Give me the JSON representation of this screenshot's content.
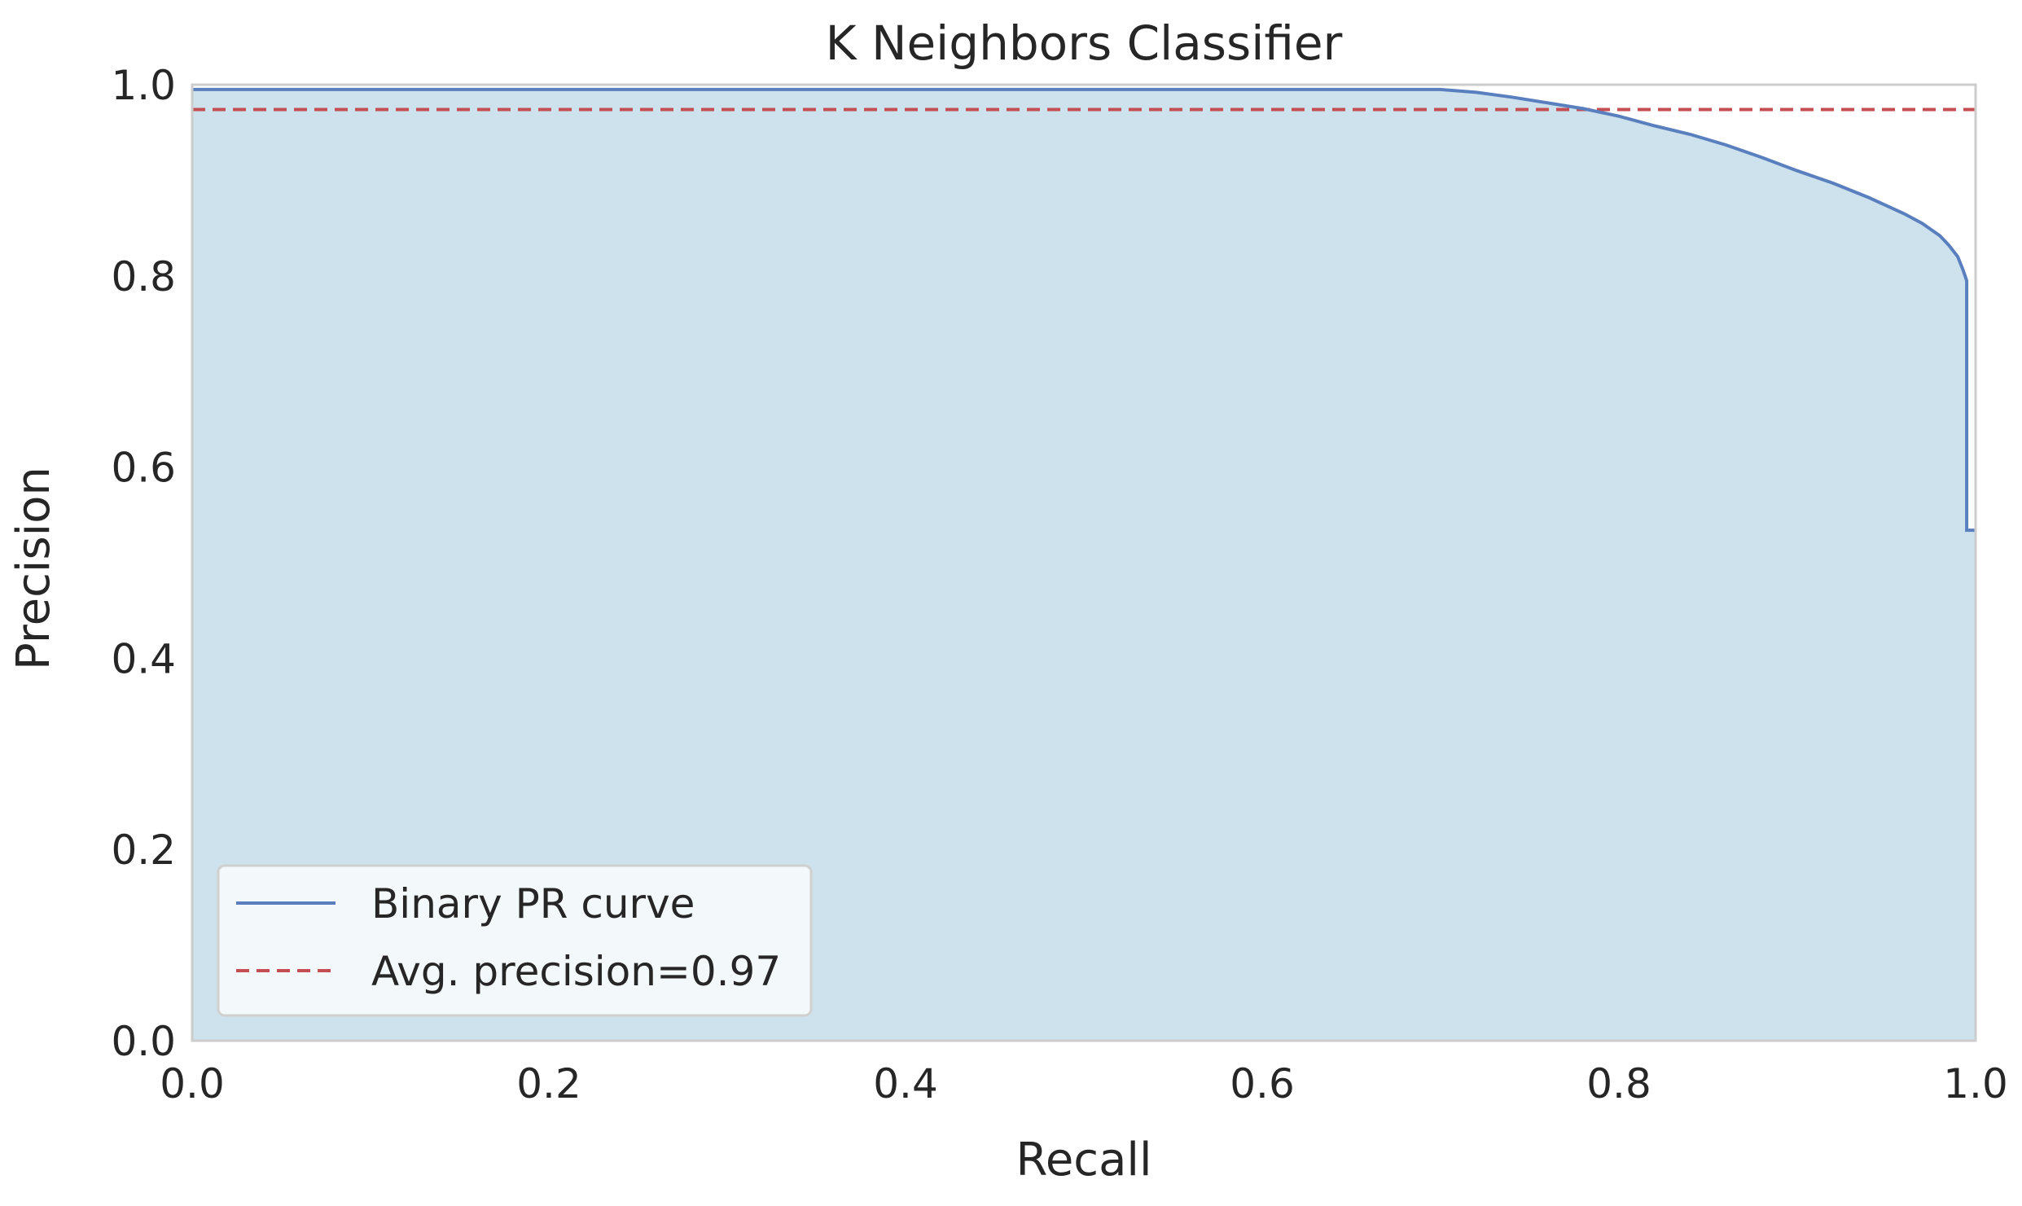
{
  "chart_data": {
    "type": "area",
    "title": "K Neighbors Classifier",
    "xlabel": "Recall",
    "ylabel": "Precision",
    "xlim": [
      0.0,
      1.0
    ],
    "ylim": [
      0.0,
      1.0
    ],
    "x_ticks": [
      "0.0",
      "0.2",
      "0.4",
      "0.6",
      "0.8",
      "1.0"
    ],
    "y_ticks": [
      "0.0",
      "0.2",
      "0.4",
      "0.6",
      "0.8",
      "1.0"
    ],
    "grid": false,
    "legend_position": "lower-left",
    "colors": {
      "curve": "#5a7fbf",
      "fill": "#cde2ed",
      "avg_line": "#c44e52",
      "frame": "#cccccc"
    },
    "series": [
      {
        "name": "Binary PR curve",
        "style": "solid-step",
        "x": [
          0.0,
          0.7,
          0.72,
          0.74,
          0.76,
          0.78,
          0.8,
          0.82,
          0.84,
          0.86,
          0.88,
          0.9,
          0.92,
          0.94,
          0.96,
          0.97,
          0.98,
          0.985,
          0.99,
          0.993,
          0.995,
          0.995,
          1.0
        ],
        "y": [
          0.995,
          0.995,
          0.992,
          0.987,
          0.981,
          0.975,
          0.967,
          0.957,
          0.948,
          0.937,
          0.924,
          0.91,
          0.897,
          0.882,
          0.865,
          0.855,
          0.842,
          0.832,
          0.82,
          0.806,
          0.795,
          0.534,
          0.534
        ]
      },
      {
        "name": "Avg. precision=0.97",
        "style": "dashed",
        "x": [
          0.0,
          1.0
        ],
        "y": [
          0.974,
          0.974
        ]
      }
    ]
  }
}
